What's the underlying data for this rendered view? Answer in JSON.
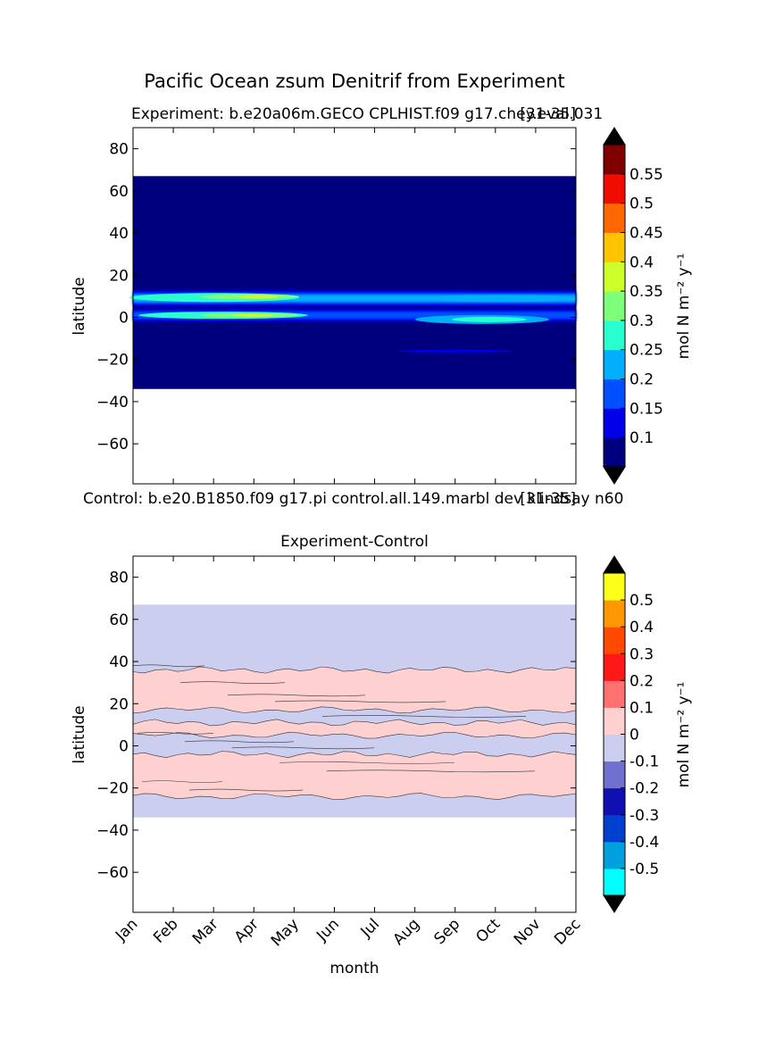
{
  "figure": {
    "suptitle": "Pacific Ocean zsum Denitrif from Experiment"
  },
  "chart_data": [
    {
      "type": "heatmap",
      "panel": "experiment",
      "title_left": "Experiment: b.e20a06m.GECO CPLHIST.f09 g17.chey.eval.031",
      "title_right": "[31-35]",
      "ylabel": "latitude",
      "xlabel": "",
      "x": [
        "Jan",
        "Feb",
        "Mar",
        "Apr",
        "May",
        "Jun",
        "Jul",
        "Aug",
        "Sep",
        "Oct",
        "Nov",
        "Dec"
      ],
      "xlim": [
        0,
        11
      ],
      "ylim": [
        -79,
        90
      ],
      "yticks": [
        80,
        60,
        40,
        20,
        0,
        -20,
        -40,
        -60
      ],
      "data_lat_range": [
        -34,
        67
      ],
      "colorbar": {
        "label": "mol N m⁻² y⁻¹",
        "levels": [
          0.05,
          0.1,
          0.15,
          0.2,
          0.25,
          0.3,
          0.35,
          0.4,
          0.45,
          0.5,
          0.55,
          0.6
        ],
        "ticks": [
          "0.1",
          "0.15",
          "0.2",
          "0.25",
          "0.3",
          "0.35",
          "0.4",
          "0.45",
          "0.5",
          "0.55"
        ],
        "colors": [
          "#00007f",
          "#0000e8",
          "#0050ff",
          "#00b0ff",
          "#29ffce",
          "#7dff7a",
          "#ceff29",
          "#ffc400",
          "#ff6800",
          "#f00d00",
          "#7f0000"
        ],
        "extend_colors": [
          "#000000",
          "#000000"
        ]
      },
      "features": [
        {
          "lat": 9,
          "max_value": 0.4,
          "months": [
            "Jan",
            "Dec"
          ]
        },
        {
          "lat": 1,
          "max_value": 0.4,
          "months": [
            "Jan",
            "Jun"
          ]
        },
        {
          "lat": -1,
          "max_value": 0.3,
          "months": [
            "Aug",
            "Dec"
          ]
        }
      ]
    },
    {
      "type": "heatmap",
      "panel": "control",
      "header_left": "Control: b.e20.B1850.f09 g17.pi control.all.149.marbl dev klindsay n60",
      "header_right": "[31-35]"
    },
    {
      "type": "heatmap",
      "panel": "difference",
      "title": "Experiment-Control",
      "ylabel": "latitude",
      "xlabel": "month",
      "x": [
        "Jan",
        "Feb",
        "Mar",
        "Apr",
        "May",
        "Jun",
        "Jul",
        "Aug",
        "Sep",
        "Oct",
        "Nov",
        "Dec"
      ],
      "xlim": [
        0,
        11
      ],
      "ylim": [
        -79,
        90
      ],
      "yticks": [
        80,
        60,
        40,
        20,
        0,
        -20,
        -40,
        -60
      ],
      "data_lat_range": [
        -34,
        67
      ],
      "colorbar": {
        "label": "mol N m⁻² y⁻¹",
        "levels": [
          -0.6,
          -0.5,
          -0.4,
          -0.3,
          -0.2,
          -0.1,
          0,
          0.1,
          0.2,
          0.3,
          0.4,
          0.5,
          0.6
        ],
        "ticks": [
          "-0.5",
          "-0.4",
          "-0.3",
          "-0.2",
          "-0.1",
          "0",
          "0.1",
          "0.2",
          "0.3",
          "0.4",
          "0.5"
        ],
        "colors": [
          "#00ffff",
          "#00a0e0",
          "#0040d0",
          "#1010b0",
          "#7070d0",
          "#cccef0",
          "#ffd0d0",
          "#ff7070",
          "#ff1818",
          "#ff4800",
          "#ff9800",
          "#ffff1a"
        ],
        "extend_colors": [
          "#000000",
          "#000000"
        ]
      },
      "bands": [
        {
          "lat_from": 17,
          "lat_to": 36,
          "value": 0.05
        },
        {
          "lat_from": 5,
          "lat_to": 11,
          "value": 0.05
        },
        {
          "lat_from": -24,
          "lat_to": -4,
          "value": 0.05
        }
      ]
    }
  ]
}
